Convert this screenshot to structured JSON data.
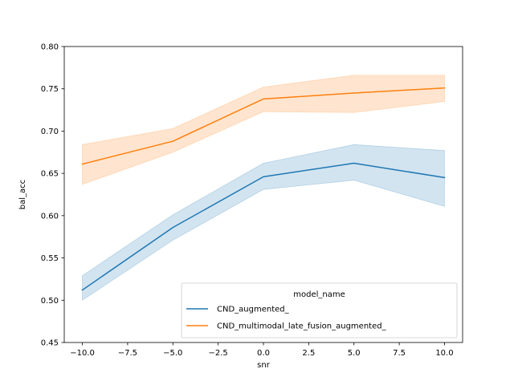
{
  "chart_data": {
    "type": "line",
    "xlabel": "snr",
    "ylabel": "bal_acc",
    "xlim": [
      -11,
      11
    ],
    "ylim": [
      0.45,
      0.8
    ],
    "x_ticks": [
      -10.0,
      -7.5,
      -5.0,
      -2.5,
      0.0,
      2.5,
      5.0,
      7.5,
      10.0
    ],
    "x_tick_labels": [
      "−10.0",
      "−7.5",
      "−5.0",
      "−2.5",
      "0.0",
      "2.5",
      "5.0",
      "7.5",
      "10.0"
    ],
    "y_ticks": [
      0.45,
      0.5,
      0.55,
      0.6,
      0.65,
      0.7,
      0.75,
      0.8
    ],
    "y_tick_labels": [
      "0.45",
      "0.50",
      "0.55",
      "0.60",
      "0.65",
      "0.70",
      "0.75",
      "0.80"
    ],
    "grid": false,
    "legend": {
      "title": "model_name",
      "placement": "lower-right"
    },
    "x": [
      -10,
      -5,
      0,
      5,
      10
    ],
    "series": [
      {
        "name": "CND_augmented_",
        "color": "#1f77b4",
        "values": [
          0.512,
          0.586,
          0.646,
          0.662,
          0.645
        ],
        "ci_lower": [
          0.5,
          0.571,
          0.631,
          0.642,
          0.611
        ],
        "ci_upper": [
          0.529,
          0.601,
          0.662,
          0.684,
          0.677
        ]
      },
      {
        "name": "CND_multimodal_late_fusion_augmented_",
        "color": "#ff7f0e",
        "values": [
          0.661,
          0.688,
          0.738,
          0.745,
          0.751
        ],
        "ci_lower": [
          0.637,
          0.675,
          0.723,
          0.722,
          0.735
        ],
        "ci_upper": [
          0.684,
          0.703,
          0.752,
          0.766,
          0.766
        ]
      }
    ]
  }
}
